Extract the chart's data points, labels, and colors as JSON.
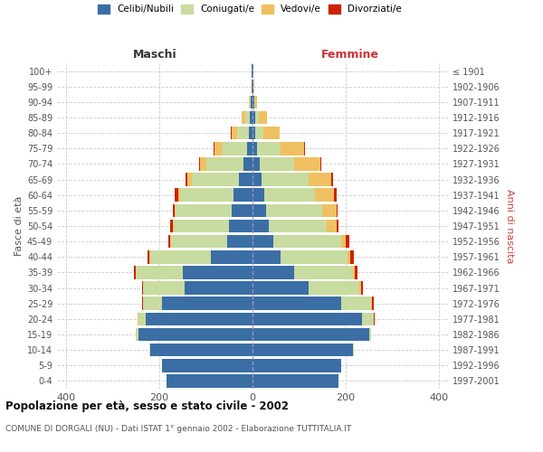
{
  "age_groups": [
    "0-4",
    "5-9",
    "10-14",
    "15-19",
    "20-24",
    "25-29",
    "30-34",
    "35-39",
    "40-44",
    "45-49",
    "50-54",
    "55-59",
    "60-64",
    "65-69",
    "70-74",
    "75-79",
    "80-84",
    "85-89",
    "90-94",
    "95-99",
    "100+"
  ],
  "birth_years": [
    "1997-2001",
    "1992-1996",
    "1987-1991",
    "1982-1986",
    "1977-1981",
    "1972-1976",
    "1967-1971",
    "1962-1966",
    "1957-1961",
    "1952-1956",
    "1947-1951",
    "1942-1946",
    "1937-1941",
    "1932-1936",
    "1927-1931",
    "1922-1926",
    "1917-1921",
    "1912-1916",
    "1907-1911",
    "1902-1906",
    "≤ 1901"
  ],
  "male_celibe": [
    185,
    195,
    220,
    245,
    230,
    195,
    145,
    150,
    90,
    55,
    50,
    45,
    40,
    30,
    20,
    12,
    8,
    5,
    3,
    1,
    1
  ],
  "male_coniugato": [
    0,
    0,
    2,
    5,
    15,
    40,
    90,
    100,
    130,
    120,
    120,
    120,
    115,
    100,
    80,
    55,
    25,
    10,
    3,
    0,
    0
  ],
  "male_vedovo": [
    0,
    0,
    0,
    0,
    1,
    1,
    0,
    1,
    1,
    1,
    2,
    3,
    5,
    10,
    12,
    15,
    12,
    8,
    2,
    0,
    0
  ],
  "male_divorziato": [
    0,
    0,
    0,
    0,
    1,
    2,
    3,
    3,
    5,
    4,
    4,
    3,
    8,
    3,
    2,
    2,
    1,
    0,
    0,
    0,
    0
  ],
  "female_celibe": [
    185,
    190,
    215,
    250,
    235,
    190,
    120,
    90,
    60,
    45,
    35,
    30,
    25,
    20,
    15,
    10,
    5,
    5,
    3,
    2,
    1
  ],
  "female_coniugato": [
    0,
    0,
    2,
    5,
    25,
    65,
    110,
    125,
    145,
    145,
    125,
    120,
    110,
    100,
    75,
    50,
    18,
    8,
    2,
    0,
    0
  ],
  "female_vedovo": [
    0,
    0,
    0,
    0,
    1,
    2,
    3,
    5,
    5,
    10,
    20,
    30,
    40,
    50,
    55,
    50,
    35,
    18,
    5,
    1,
    0
  ],
  "female_divorziato": [
    0,
    0,
    0,
    0,
    1,
    3,
    5,
    5,
    8,
    8,
    5,
    3,
    5,
    3,
    2,
    2,
    1,
    0,
    0,
    0,
    0
  ],
  "colors": {
    "celibe": "#3a6ea5",
    "coniugato": "#c8dba0",
    "vedovo": "#f0c060",
    "divorziato": "#cc2200"
  },
  "xlim": 420,
  "title": "Popolazione per età, sesso e stato civile - 2002",
  "subtitle": "COMUNE DI DORGALI (NU) - Dati ISTAT 1° gennaio 2002 - Elaborazione TUTTITALIA.IT",
  "ylabel_left": "Fasce di età",
  "ylabel_right": "Anni di nascita",
  "xlabel_left": "Maschi",
  "xlabel_right": "Femmine",
  "background_color": "#ffffff",
  "grid_color": "#cccccc"
}
